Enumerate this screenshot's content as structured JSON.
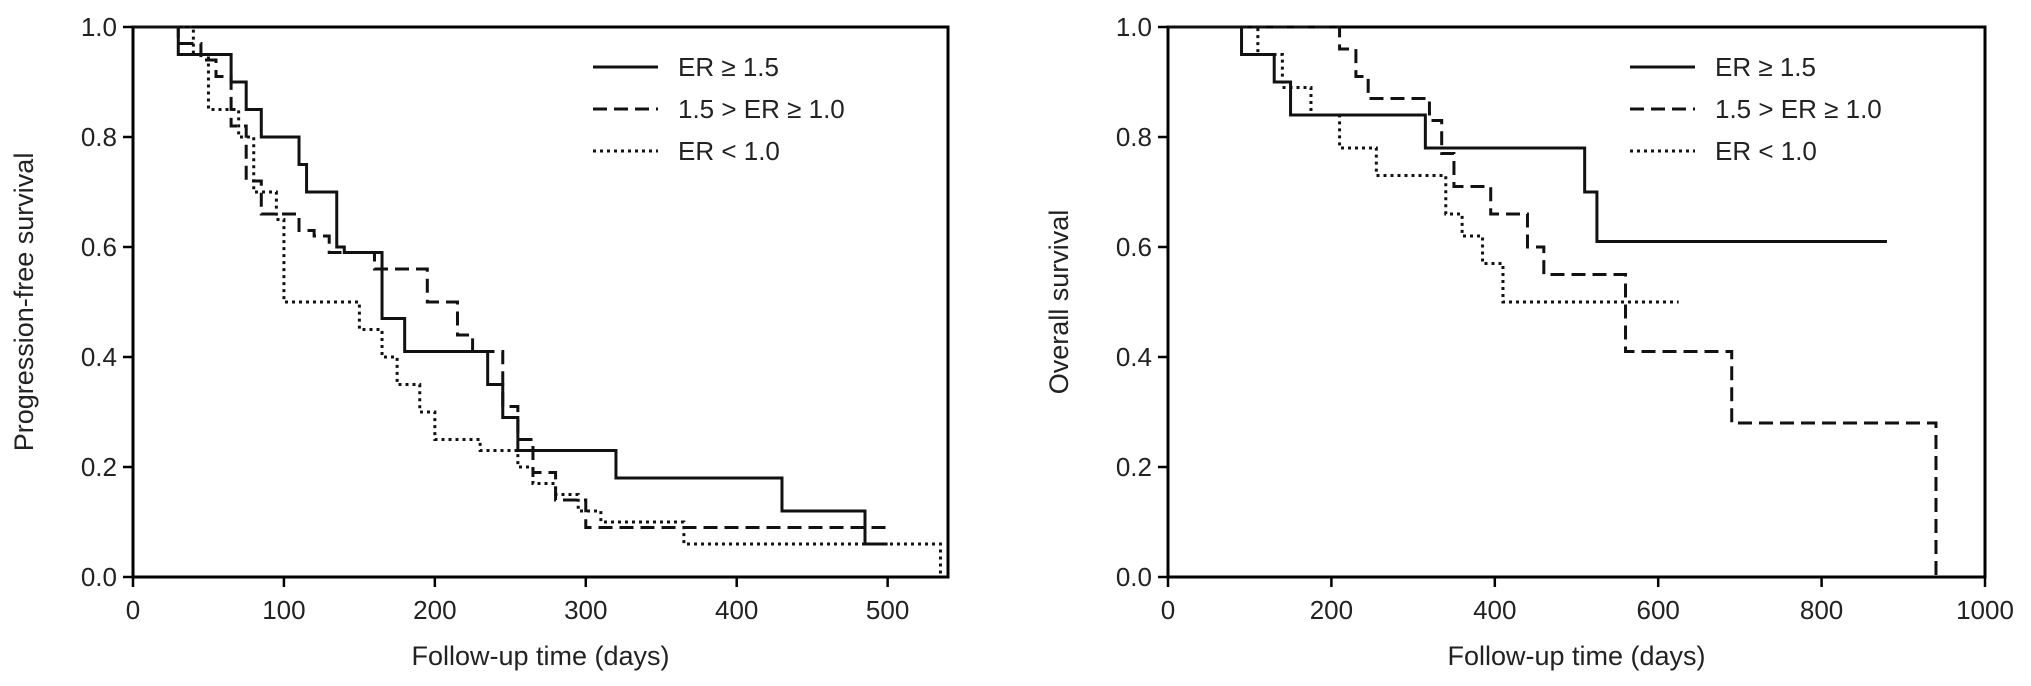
{
  "chart_data": [
    {
      "type": "line",
      "step": true,
      "xlabel": "Follow-up time (days)",
      "ylabel": "Progression-free survival",
      "xlim": [
        0,
        540
      ],
      "ylim": [
        0,
        1.0
      ],
      "xticks": [
        0,
        100,
        200,
        300,
        400,
        500
      ],
      "yticks": [
        0.0,
        0.2,
        0.4,
        0.6,
        0.8,
        1.0
      ],
      "xtick_labels": [
        "0",
        "100",
        "200",
        "300",
        "400",
        "500"
      ],
      "ytick_labels": [
        "0.0",
        "0.2",
        "0.4",
        "0.6",
        "0.8",
        "1.0"
      ],
      "legend_position": "top-right",
      "series": [
        {
          "name": "ER ≥ 1.5",
          "style": "solid",
          "x": [
            0,
            30,
            65,
            75,
            85,
            95,
            110,
            115,
            135,
            140,
            165,
            180,
            235,
            245,
            255,
            320,
            430,
            485,
            500
          ],
          "y": [
            1.0,
            0.95,
            0.9,
            0.85,
            0.8,
            0.8,
            0.75,
            0.7,
            0.6,
            0.59,
            0.47,
            0.41,
            0.35,
            0.29,
            0.23,
            0.18,
            0.12,
            0.06,
            0.06
          ]
        },
        {
          "name": "1.5 > ER ≥ 1.0",
          "style": "dashed",
          "x": [
            0,
            30,
            45,
            55,
            65,
            75,
            85,
            95,
            110,
            120,
            130,
            160,
            195,
            215,
            225,
            245,
            255,
            265,
            280,
            300,
            500
          ],
          "y": [
            1.0,
            0.97,
            0.94,
            0.91,
            0.82,
            0.72,
            0.66,
            0.66,
            0.63,
            0.62,
            0.59,
            0.56,
            0.5,
            0.44,
            0.41,
            0.31,
            0.25,
            0.19,
            0.14,
            0.09,
            0.09
          ]
        },
        {
          "name": "ER < 1.0",
          "style": "dotted",
          "x": [
            0,
            40,
            50,
            70,
            80,
            95,
            100,
            130,
            150,
            165,
            175,
            190,
            200,
            230,
            255,
            265,
            280,
            295,
            310,
            350,
            365,
            480,
            520,
            535
          ],
          "y": [
            1.0,
            0.95,
            0.85,
            0.8,
            0.7,
            0.65,
            0.5,
            0.5,
            0.45,
            0.4,
            0.35,
            0.3,
            0.25,
            0.23,
            0.2,
            0.17,
            0.15,
            0.12,
            0.1,
            0.1,
            0.06,
            0.06,
            0.06,
            0.0
          ]
        }
      ]
    },
    {
      "type": "line",
      "step": true,
      "xlabel": "Follow-up time (days)",
      "ylabel": "Overall survival",
      "xlim": [
        0,
        1000
      ],
      "ylim": [
        0,
        1.0
      ],
      "xticks": [
        0,
        200,
        400,
        600,
        800,
        1000
      ],
      "yticks": [
        0.0,
        0.2,
        0.4,
        0.6,
        0.8,
        1.0
      ],
      "xtick_labels": [
        "0",
        "200",
        "400",
        "600",
        "800",
        "1000"
      ],
      "ytick_labels": [
        "0.0",
        "0.2",
        "0.4",
        "0.6",
        "0.8",
        "1.0"
      ],
      "legend_position": "top-right",
      "series": [
        {
          "name": "ER ≥ 1.5",
          "style": "solid",
          "x": [
            0,
            90,
            130,
            150,
            315,
            510,
            525,
            880
          ],
          "y": [
            1.0,
            0.95,
            0.9,
            0.84,
            0.78,
            0.7,
            0.61,
            0.61
          ]
        },
        {
          "name": "1.5 > ER ≥ 1.0",
          "style": "dashed",
          "x": [
            0,
            210,
            230,
            245,
            320,
            335,
            350,
            395,
            440,
            460,
            560,
            690,
            940
          ],
          "y": [
            1.0,
            0.96,
            0.91,
            0.87,
            0.83,
            0.77,
            0.71,
            0.66,
            0.6,
            0.55,
            0.41,
            0.28,
            0.0
          ]
        },
        {
          "name": "ER < 1.0",
          "style": "dotted",
          "x": [
            0,
            110,
            140,
            175,
            210,
            255,
            340,
            360,
            385,
            410,
            625
          ],
          "y": [
            1.0,
            0.95,
            0.89,
            0.84,
            0.78,
            0.73,
            0.66,
            0.62,
            0.57,
            0.5,
            0.5
          ]
        }
      ]
    }
  ]
}
